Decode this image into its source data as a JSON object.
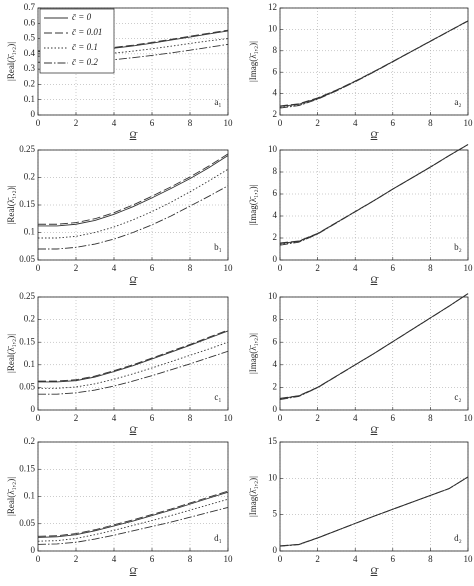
{
  "chart_data": [
    {
      "type": "line",
      "label": "a₁",
      "xlabel": "Ω̄",
      "ylabel": "|Real(λ̄₁,₂)|",
      "x": [
        0,
        1,
        2,
        3,
        4,
        5,
        6,
        7,
        8,
        9,
        10
      ],
      "xlim": [
        0,
        10
      ],
      "xticks": [
        0,
        2,
        4,
        6,
        8,
        10
      ],
      "ylim": [
        0,
        0.7
      ],
      "yticks": [
        0,
        0.1,
        0.2,
        0.3,
        0.4,
        0.5,
        0.6,
        0.7
      ],
      "grid": true,
      "legend": "upper left",
      "series": [
        {
          "name": "c̄ = 0",
          "color": "#333333",
          "linestyle": "solid",
          "values": [
            0.415,
            0.415,
            0.418,
            0.425,
            0.437,
            0.452,
            0.47,
            0.49,
            0.51,
            0.53,
            0.55
          ]
        },
        {
          "name": "c̄ = 0.01",
          "color": "#333333",
          "linestyle": "dashed",
          "values": [
            0.42,
            0.42,
            0.423,
            0.43,
            0.442,
            0.457,
            0.475,
            0.495,
            0.515,
            0.535,
            0.555
          ]
        },
        {
          "name": "c̄ = 0.1",
          "color": "#333333",
          "linestyle": "dotted",
          "values": [
            0.385,
            0.385,
            0.388,
            0.395,
            0.405,
            0.418,
            0.433,
            0.45,
            0.468,
            0.485,
            0.5
          ]
        },
        {
          "name": "c̄ = 0.2",
          "color": "#333333",
          "linestyle": "dashdot",
          "values": [
            0.345,
            0.345,
            0.347,
            0.353,
            0.362,
            0.375,
            0.39,
            0.406,
            0.424,
            0.443,
            0.462
          ]
        }
      ]
    },
    {
      "type": "line",
      "label": "a₂",
      "xlabel": "Ω̄",
      "ylabel": "|Imag(λ̄₁,₂)|",
      "x": [
        0,
        1,
        2,
        3,
        4,
        5,
        6,
        7,
        8,
        9,
        10
      ],
      "xlim": [
        0,
        10
      ],
      "xticks": [
        0,
        2,
        4,
        6,
        8,
        10
      ],
      "ylim": [
        2,
        12
      ],
      "yticks": [
        2,
        4,
        6,
        8,
        10,
        12
      ],
      "grid": true,
      "series": [
        {
          "color": "#333333",
          "linestyle": "solid",
          "values": [
            2.8,
            3.0,
            3.55,
            4.3,
            5.15,
            6.05,
            7.0,
            7.95,
            8.9,
            9.85,
            10.8
          ]
        },
        {
          "color": "#333333",
          "linestyle": "dashed",
          "values": [
            2.85,
            3.05,
            3.6,
            4.33,
            5.17,
            6.07,
            7.01,
            7.96,
            8.91,
            9.86,
            10.81
          ]
        },
        {
          "color": "#333333",
          "linestyle": "dotted",
          "values": [
            2.7,
            2.92,
            3.5,
            4.27,
            5.12,
            6.03,
            6.98,
            7.94,
            8.89,
            9.84,
            10.79
          ]
        },
        {
          "color": "#333333",
          "linestyle": "dashdot",
          "values": [
            2.65,
            2.88,
            3.47,
            4.25,
            5.1,
            6.02,
            6.97,
            7.93,
            8.88,
            9.83,
            10.78
          ]
        }
      ]
    },
    {
      "type": "line",
      "label": "b₁",
      "xlabel": "Ω̄",
      "ylabel": "|Real(λ̄₁,₂)|",
      "x": [
        0,
        1,
        2,
        3,
        4,
        5,
        6,
        7,
        8,
        9,
        10
      ],
      "xlim": [
        0,
        10
      ],
      "xticks": [
        0,
        2,
        4,
        6,
        8,
        10
      ],
      "ylim": [
        0.05,
        0.25
      ],
      "yticks": [
        0.05,
        0.1,
        0.15,
        0.2,
        0.25
      ],
      "grid": true,
      "series": [
        {
          "color": "#333333",
          "linestyle": "solid",
          "values": [
            0.112,
            0.112,
            0.115,
            0.122,
            0.133,
            0.147,
            0.163,
            0.18,
            0.198,
            0.218,
            0.24
          ]
        },
        {
          "color": "#333333",
          "linestyle": "dashed",
          "values": [
            0.115,
            0.115,
            0.118,
            0.125,
            0.136,
            0.15,
            0.166,
            0.183,
            0.201,
            0.221,
            0.243
          ]
        },
        {
          "color": "#333333",
          "linestyle": "dotted",
          "values": [
            0.09,
            0.09,
            0.093,
            0.1,
            0.11,
            0.123,
            0.138,
            0.155,
            0.174,
            0.194,
            0.215
          ]
        },
        {
          "color": "#333333",
          "linestyle": "dashdot",
          "values": [
            0.07,
            0.07,
            0.073,
            0.079,
            0.088,
            0.1,
            0.114,
            0.13,
            0.148,
            0.166,
            0.185
          ]
        }
      ]
    },
    {
      "type": "line",
      "label": "b₂",
      "xlabel": "Ω̄",
      "ylabel": "|Imag(λ̄₁,₂)|",
      "x": [
        0,
        1,
        2,
        3,
        4,
        5,
        6,
        7,
        8,
        9,
        10
      ],
      "xlim": [
        0,
        10
      ],
      "xticks": [
        0,
        2,
        4,
        6,
        8,
        10
      ],
      "ylim": [
        0,
        10
      ],
      "yticks": [
        0,
        2,
        4,
        6,
        8,
        10
      ],
      "grid": true,
      "series": [
        {
          "color": "#333333",
          "linestyle": "solid",
          "values": [
            1.5,
            1.7,
            2.4,
            3.4,
            4.4,
            5.4,
            6.45,
            7.45,
            8.45,
            9.5,
            10.5
          ]
        },
        {
          "color": "#333333",
          "linestyle": "dashed",
          "values": [
            1.55,
            1.73,
            2.42,
            3.41,
            4.41,
            5.41,
            6.45,
            7.45,
            8.46,
            9.5,
            10.5
          ]
        },
        {
          "color": "#333333",
          "linestyle": "dotted",
          "values": [
            1.4,
            1.65,
            2.37,
            3.38,
            4.39,
            5.39,
            6.44,
            7.44,
            8.45,
            9.49,
            10.49
          ]
        },
        {
          "color": "#333333",
          "linestyle": "dashdot",
          "values": [
            1.35,
            1.62,
            2.35,
            3.37,
            4.38,
            5.39,
            6.44,
            7.44,
            8.44,
            9.49,
            10.49
          ]
        }
      ]
    },
    {
      "type": "line",
      "label": "c₁",
      "xlabel": "Ω̄",
      "ylabel": "|Real(λ̄₁,₂)|",
      "x": [
        0,
        1,
        2,
        3,
        4,
        5,
        6,
        7,
        8,
        9,
        10
      ],
      "xlim": [
        0,
        10
      ],
      "xticks": [
        0,
        2,
        4,
        6,
        8,
        10
      ],
      "ylim": [
        0,
        0.25
      ],
      "yticks": [
        0,
        0.05,
        0.1,
        0.15,
        0.2,
        0.25
      ],
      "grid": true,
      "series": [
        {
          "color": "#333333",
          "linestyle": "solid",
          "values": [
            0.062,
            0.062,
            0.065,
            0.073,
            0.085,
            0.098,
            0.113,
            0.128,
            0.143,
            0.159,
            0.175
          ]
        },
        {
          "color": "#333333",
          "linestyle": "dashed",
          "values": [
            0.064,
            0.064,
            0.067,
            0.075,
            0.087,
            0.1,
            0.115,
            0.13,
            0.145,
            0.161,
            0.177
          ]
        },
        {
          "color": "#333333",
          "linestyle": "dotted",
          "values": [
            0.048,
            0.048,
            0.051,
            0.058,
            0.068,
            0.08,
            0.093,
            0.107,
            0.121,
            0.135,
            0.15
          ]
        },
        {
          "color": "#333333",
          "linestyle": "dashdot",
          "values": [
            0.035,
            0.035,
            0.038,
            0.044,
            0.053,
            0.064,
            0.076,
            0.089,
            0.102,
            0.116,
            0.13
          ]
        }
      ]
    },
    {
      "type": "line",
      "label": "c₂",
      "xlabel": "Ω̄",
      "ylabel": "|Imag(λ̄₁,₂)|",
      "x": [
        0,
        1,
        2,
        3,
        4,
        5,
        6,
        7,
        8,
        9,
        10
      ],
      "xlim": [
        0,
        10
      ],
      "xticks": [
        0,
        2,
        4,
        6,
        8,
        10
      ],
      "ylim": [
        0,
        10
      ],
      "yticks": [
        0,
        2,
        4,
        6,
        8,
        10
      ],
      "grid": true,
      "series": [
        {
          "color": "#333333",
          "linestyle": "solid",
          "values": [
            1.0,
            1.25,
            2.0,
            3.0,
            4.0,
            5.0,
            6.05,
            7.1,
            8.15,
            9.2,
            10.3
          ]
        },
        {
          "color": "#333333",
          "linestyle": "dashed",
          "values": [
            1.03,
            1.27,
            2.01,
            3.01,
            4.0,
            5.0,
            6.05,
            7.1,
            8.15,
            9.2,
            10.3
          ]
        },
        {
          "color": "#333333",
          "linestyle": "dotted",
          "values": [
            0.95,
            1.22,
            1.98,
            2.99,
            3.99,
            5.0,
            6.05,
            7.1,
            8.15,
            9.2,
            10.3
          ]
        },
        {
          "color": "#333333",
          "linestyle": "dashdot",
          "values": [
            0.92,
            1.2,
            1.97,
            2.98,
            3.99,
            4.99,
            6.04,
            7.09,
            8.14,
            9.19,
            10.29
          ]
        }
      ]
    },
    {
      "type": "line",
      "label": "d₁",
      "xlabel": "Ω̄",
      "ylabel": "|Real(λ̄₁,₂)|",
      "x": [
        0,
        1,
        2,
        3,
        4,
        5,
        6,
        7,
        8,
        9,
        10
      ],
      "xlim": [
        0,
        10
      ],
      "xticks": [
        0,
        2,
        4,
        6,
        8,
        10
      ],
      "ylim": [
        0,
        0.2
      ],
      "yticks": [
        0,
        0.05,
        0.1,
        0.15,
        0.2
      ],
      "grid": true,
      "series": [
        {
          "color": "#333333",
          "linestyle": "solid",
          "values": [
            0.025,
            0.026,
            0.03,
            0.037,
            0.046,
            0.055,
            0.065,
            0.075,
            0.086,
            0.097,
            0.108
          ]
        },
        {
          "color": "#333333",
          "linestyle": "dashed",
          "values": [
            0.027,
            0.028,
            0.032,
            0.039,
            0.048,
            0.057,
            0.067,
            0.077,
            0.088,
            0.099,
            0.11
          ]
        },
        {
          "color": "#333333",
          "linestyle": "dotted",
          "values": [
            0.018,
            0.019,
            0.023,
            0.03,
            0.038,
            0.047,
            0.056,
            0.065,
            0.075,
            0.085,
            0.095
          ]
        },
        {
          "color": "#333333",
          "linestyle": "dashdot",
          "values": [
            0.012,
            0.013,
            0.016,
            0.022,
            0.029,
            0.037,
            0.045,
            0.053,
            0.062,
            0.071,
            0.08
          ]
        }
      ]
    },
    {
      "type": "line",
      "label": "d₂",
      "xlabel": "Ω̄",
      "ylabel": "|Imag(λ̄₁,₂)|",
      "x": [
        0,
        1,
        2,
        3,
        4,
        5,
        6,
        7,
        8,
        9,
        10
      ],
      "xlim": [
        0,
        10
      ],
      "xticks": [
        0,
        2,
        4,
        6,
        8,
        10
      ],
      "ylim": [
        0,
        15
      ],
      "yticks": [
        0,
        5,
        10,
        15
      ],
      "grid": true,
      "series": [
        {
          "color": "#333333",
          "linestyle": "solid",
          "values": [
            0.7,
            0.9,
            1.8,
            2.8,
            3.8,
            4.8,
            5.75,
            6.7,
            7.65,
            8.6,
            10.2
          ]
        },
        {
          "color": "#333333",
          "linestyle": "dashed",
          "values": [
            0.72,
            0.92,
            1.81,
            2.8,
            3.8,
            4.8,
            5.75,
            6.7,
            7.65,
            8.6,
            10.2
          ]
        },
        {
          "color": "#333333",
          "linestyle": "dotted",
          "values": [
            0.68,
            0.88,
            1.79,
            2.79,
            3.79,
            4.79,
            5.74,
            6.69,
            7.64,
            8.59,
            10.19
          ]
        },
        {
          "color": "#333333",
          "linestyle": "dashdot",
          "values": [
            0.66,
            0.87,
            1.78,
            2.79,
            3.79,
            4.79,
            5.74,
            6.69,
            7.64,
            8.59,
            10.19
          ]
        }
      ]
    }
  ]
}
